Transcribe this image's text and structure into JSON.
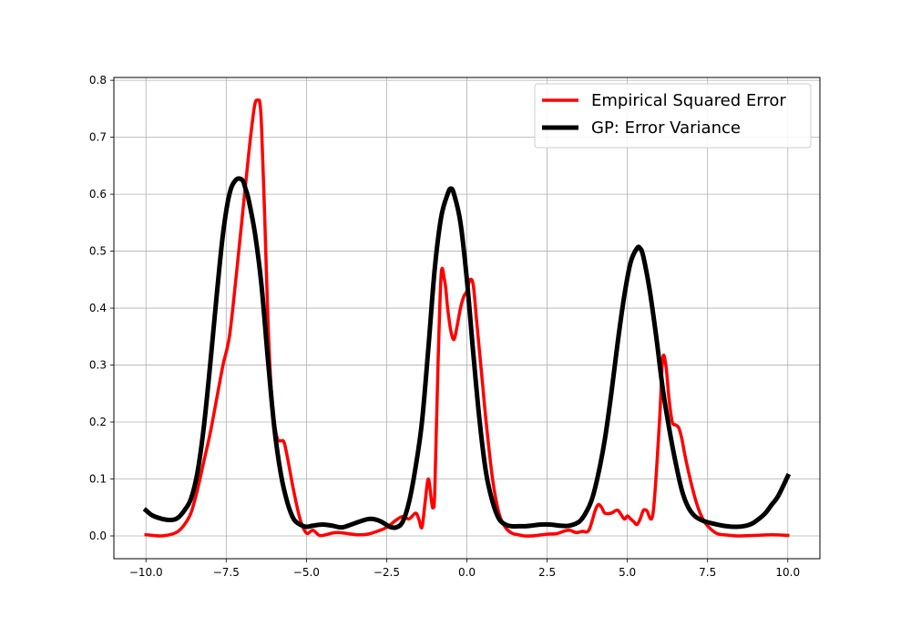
{
  "chart_data": {
    "type": "line",
    "title": "",
    "xlabel": "",
    "ylabel": "",
    "xlim": [
      -11,
      11
    ],
    "ylim": [
      -0.04,
      0.805
    ],
    "xticks": [
      -10.0,
      -7.5,
      -5.0,
      -2.5,
      0.0,
      2.5,
      5.0,
      7.5,
      10.0
    ],
    "xtick_labels": [
      "−10.0",
      "−7.5",
      "−5.0",
      "−2.5",
      "0.0",
      "2.5",
      "5.0",
      "7.5",
      "10.0"
    ],
    "yticks": [
      0.0,
      0.1,
      0.2,
      0.3,
      0.4,
      0.5,
      0.6,
      0.7,
      0.8
    ],
    "ytick_labels": [
      "0.0",
      "0.1",
      "0.2",
      "0.3",
      "0.4",
      "0.5",
      "0.6",
      "0.7",
      "0.8"
    ],
    "grid": true,
    "legend_position": "top-right",
    "series": [
      {
        "name": "Empirical Squared Error",
        "color": "#ff0000",
        "x": [
          -10.0,
          -9.8,
          -9.5,
          -9.2,
          -9.0,
          -8.8,
          -8.6,
          -8.4,
          -8.2,
          -8.0,
          -7.8,
          -7.6,
          -7.4,
          -7.2,
          -7.0,
          -6.8,
          -6.7,
          -6.6,
          -6.5,
          -6.45,
          -6.4,
          -6.3,
          -6.2,
          -6.1,
          -6.0,
          -5.9,
          -5.8,
          -5.7,
          -5.6,
          -5.5,
          -5.4,
          -5.2,
          -5.0,
          -4.8,
          -4.6,
          -4.4,
          -4.2,
          -4.0,
          -3.7,
          -3.4,
          -3.1,
          -2.8,
          -2.5,
          -2.2,
          -2.0,
          -1.8,
          -1.6,
          -1.5,
          -1.4,
          -1.3,
          -1.2,
          -1.1,
          -1.05,
          -1.0,
          -0.9,
          -0.8,
          -0.7,
          -0.65,
          -0.6,
          -0.5,
          -0.4,
          -0.3,
          -0.2,
          -0.1,
          0.0,
          0.1,
          0.2,
          0.3,
          0.4,
          0.5,
          0.6,
          0.8,
          1.0,
          1.2,
          1.4,
          1.6,
          1.8,
          2.0,
          2.2,
          2.5,
          2.8,
          3.0,
          3.2,
          3.4,
          3.6,
          3.8,
          4.0,
          4.1,
          4.2,
          4.3,
          4.5,
          4.7,
          4.9,
          5.0,
          5.1,
          5.2,
          5.3,
          5.4,
          5.5,
          5.6,
          5.8,
          6.0,
          6.1,
          6.2,
          6.3,
          6.4,
          6.5,
          6.6,
          6.7,
          6.8,
          7.0,
          7.2,
          7.4,
          7.6,
          7.8,
          8.0,
          8.2,
          8.5,
          9.0,
          9.5,
          10.0
        ],
        "values": [
          0.002,
          0.001,
          0.0,
          0.003,
          0.008,
          0.02,
          0.04,
          0.08,
          0.13,
          0.18,
          0.24,
          0.3,
          0.35,
          0.45,
          0.56,
          0.67,
          0.72,
          0.76,
          0.765,
          0.76,
          0.72,
          0.56,
          0.38,
          0.26,
          0.2,
          0.17,
          0.167,
          0.165,
          0.14,
          0.11,
          0.08,
          0.03,
          0.005,
          0.01,
          0.001,
          0.002,
          0.005,
          0.006,
          0.004,
          0.002,
          0.003,
          0.008,
          0.015,
          0.028,
          0.034,
          0.03,
          0.04,
          0.03,
          0.015,
          0.06,
          0.1,
          0.06,
          0.05,
          0.08,
          0.3,
          0.46,
          0.45,
          0.43,
          0.4,
          0.36,
          0.345,
          0.37,
          0.4,
          0.42,
          0.43,
          0.45,
          0.44,
          0.38,
          0.32,
          0.26,
          0.2,
          0.1,
          0.04,
          0.015,
          0.005,
          0.002,
          0.0,
          0.0,
          0.001,
          0.003,
          0.004,
          0.008,
          0.01,
          0.006,
          0.008,
          0.01,
          0.045,
          0.055,
          0.05,
          0.04,
          0.04,
          0.045,
          0.03,
          0.035,
          0.03,
          0.025,
          0.02,
          0.03,
          0.045,
          0.045,
          0.04,
          0.2,
          0.31,
          0.3,
          0.24,
          0.2,
          0.195,
          0.19,
          0.17,
          0.14,
          0.09,
          0.05,
          0.025,
          0.012,
          0.004,
          0.002,
          0.001,
          0.0,
          0.001,
          0.002,
          0.001
        ]
      },
      {
        "name": "GP: Error Variance",
        "color": "#000000",
        "x": [
          -10.0,
          -9.8,
          -9.5,
          -9.2,
          -9.0,
          -8.8,
          -8.6,
          -8.4,
          -8.2,
          -8.0,
          -7.8,
          -7.6,
          -7.4,
          -7.2,
          -7.0,
          -6.9,
          -6.8,
          -6.6,
          -6.4,
          -6.2,
          -6.0,
          -5.8,
          -5.6,
          -5.4,
          -5.2,
          -5.0,
          -4.8,
          -4.5,
          -4.2,
          -3.9,
          -3.6,
          -3.3,
          -3.0,
          -2.7,
          -2.4,
          -2.2,
          -2.0,
          -1.8,
          -1.6,
          -1.4,
          -1.2,
          -1.0,
          -0.8,
          -0.6,
          -0.5,
          -0.4,
          -0.2,
          0.0,
          0.2,
          0.4,
          0.6,
          0.8,
          1.0,
          1.2,
          1.4,
          1.6,
          1.8,
          2.0,
          2.3,
          2.6,
          2.9,
          3.2,
          3.5,
          3.7,
          3.9,
          4.1,
          4.3,
          4.5,
          4.7,
          4.9,
          5.1,
          5.3,
          5.4,
          5.5,
          5.7,
          5.9,
          6.1,
          6.3,
          6.5,
          6.7,
          6.9,
          7.1,
          7.3,
          7.5,
          7.8,
          8.1,
          8.4,
          8.7,
          8.9,
          9.1,
          9.3,
          9.5,
          9.7,
          10.0
        ],
        "values": [
          0.045,
          0.036,
          0.03,
          0.028,
          0.032,
          0.045,
          0.065,
          0.11,
          0.19,
          0.3,
          0.42,
          0.53,
          0.6,
          0.625,
          0.625,
          0.61,
          0.59,
          0.53,
          0.44,
          0.31,
          0.19,
          0.11,
          0.06,
          0.03,
          0.02,
          0.016,
          0.018,
          0.02,
          0.018,
          0.015,
          0.02,
          0.026,
          0.03,
          0.026,
          0.016,
          0.015,
          0.025,
          0.06,
          0.12,
          0.2,
          0.33,
          0.47,
          0.56,
          0.6,
          0.61,
          0.6,
          0.55,
          0.45,
          0.32,
          0.2,
          0.11,
          0.06,
          0.03,
          0.02,
          0.017,
          0.017,
          0.017,
          0.018,
          0.02,
          0.02,
          0.018,
          0.018,
          0.025,
          0.04,
          0.065,
          0.11,
          0.17,
          0.25,
          0.34,
          0.42,
          0.48,
          0.505,
          0.505,
          0.49,
          0.43,
          0.35,
          0.26,
          0.19,
          0.13,
          0.08,
          0.05,
          0.035,
          0.028,
          0.024,
          0.02,
          0.017,
          0.016,
          0.018,
          0.022,
          0.03,
          0.04,
          0.055,
          0.07,
          0.105
        ]
      }
    ]
  }
}
